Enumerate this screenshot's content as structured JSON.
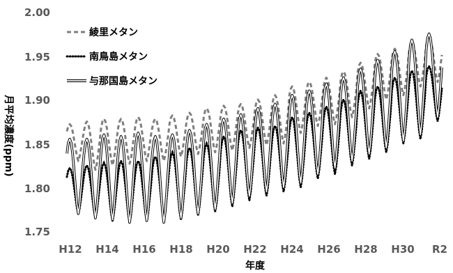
{
  "chart_data": {
    "type": "line",
    "xlabel": "年度",
    "ylabel": "月平均濃度(ppm)",
    "ylim": [
      1.75,
      2.0
    ],
    "yticks": [
      "1.75",
      "1.80",
      "1.85",
      "1.90",
      "1.95",
      "2.00"
    ],
    "xticks": [
      "H12",
      "H14",
      "H16",
      "H18",
      "H20",
      "H22",
      "H24",
      "H26",
      "H28",
      "H30",
      "R2"
    ],
    "grid": false,
    "legend_position": "top-left",
    "colors": {
      "ryori": "#7f7f7f",
      "minamitorishima": "#000000",
      "yonaguni": "#000000",
      "tick": "#595959"
    },
    "series": [
      {
        "name": "綾里メタン",
        "style": "dashed",
        "annual_max": [
          1.872,
          1.875,
          1.878,
          1.878,
          1.88,
          1.878,
          1.882,
          1.885,
          1.89,
          1.893,
          1.895,
          1.9,
          1.905,
          1.915,
          1.92,
          1.925,
          1.932,
          1.942,
          1.952,
          1.958,
          1.965,
          1.972
        ],
        "annual_min": [
          1.83,
          1.82,
          1.825,
          1.827,
          1.83,
          1.83,
          1.835,
          1.838,
          1.84,
          1.842,
          1.845,
          1.848,
          1.85,
          1.862,
          1.87,
          1.872,
          1.88,
          1.89,
          1.9,
          1.905,
          1.915,
          1.92
        ]
      },
      {
        "name": "南鳥島メタン",
        "style": "dotted",
        "annual_max": [
          1.822,
          1.825,
          1.828,
          1.83,
          1.83,
          1.835,
          1.84,
          1.845,
          1.85,
          1.858,
          1.865,
          1.868,
          1.87,
          1.88,
          1.885,
          1.892,
          1.9,
          1.91,
          1.915,
          1.925,
          1.933,
          1.938
        ],
        "annual_min": [
          1.77,
          1.765,
          1.762,
          1.76,
          1.762,
          1.763,
          1.763,
          1.768,
          1.772,
          1.778,
          1.785,
          1.79,
          1.795,
          1.8,
          1.81,
          1.815,
          1.825,
          1.832,
          1.84,
          1.85,
          1.855,
          1.875
        ]
      },
      {
        "name": "与那国島メタン",
        "style": "double",
        "annual_max": [
          1.855,
          1.855,
          1.86,
          1.858,
          1.862,
          1.858,
          1.86,
          1.865,
          1.872,
          1.878,
          1.883,
          1.89,
          1.895,
          1.905,
          1.91,
          1.918,
          1.925,
          1.935,
          1.945,
          1.955,
          1.968,
          1.975
        ],
        "annual_min": [
          1.77,
          1.765,
          1.763,
          1.76,
          1.762,
          1.76,
          1.765,
          1.77,
          1.775,
          1.782,
          1.79,
          1.795,
          1.8,
          1.805,
          1.815,
          1.822,
          1.83,
          1.838,
          1.845,
          1.853,
          1.86,
          1.88
        ]
      }
    ]
  }
}
